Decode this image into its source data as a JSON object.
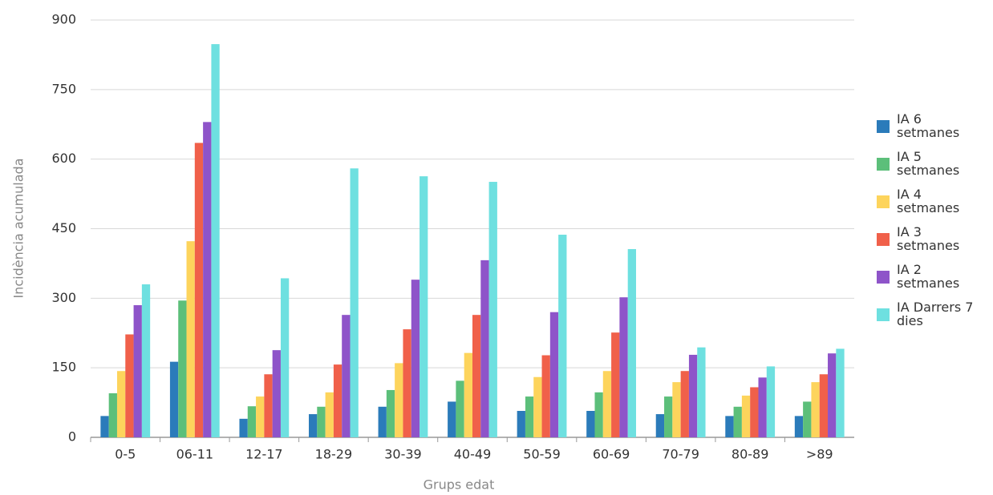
{
  "chart_data": {
    "type": "bar",
    "x_label": "Grups edat",
    "y_label": "Incidència acumulada",
    "categories": [
      "0-5",
      "06-11",
      "12-17",
      "18-29",
      "30-39",
      "40-49",
      "50-59",
      "60-69",
      "70-79",
      "80-89",
      ">89"
    ],
    "series": [
      {
        "name": "IA 6 setmanes",
        "color": "#2b7bba",
        "values": [
          46,
          163,
          40,
          50,
          66,
          77,
          57,
          57,
          50,
          46,
          46
        ]
      },
      {
        "name": "IA 5 setmanes",
        "color": "#5cbf7a",
        "values": [
          95,
          295,
          67,
          66,
          102,
          122,
          88,
          97,
          88,
          66,
          77
        ]
      },
      {
        "name": "IA 4 setmanes",
        "color": "#fdd45c",
        "values": [
          143,
          423,
          88,
          97,
          160,
          182,
          130,
          143,
          119,
          90,
          119
        ]
      },
      {
        "name": "IA 3 setmanes",
        "color": "#f0604a",
        "values": [
          222,
          635,
          136,
          157,
          233,
          264,
          177,
          226,
          143,
          108,
          136
        ]
      },
      {
        "name": "IA 2 setmanes",
        "color": "#8e54c9",
        "values": [
          285,
          680,
          188,
          264,
          340,
          382,
          270,
          302,
          178,
          129,
          181
        ]
      },
      {
        "name": "IA Darrers 7 dies",
        "color": "#6ee0e0",
        "values": [
          330,
          848,
          343,
          580,
          563,
          551,
          437,
          406,
          194,
          153,
          191
        ]
      }
    ],
    "ylim": [
      0,
      900
    ],
    "yticks": [
      0,
      150,
      300,
      450,
      600,
      750,
      900
    ],
    "grid": true,
    "legend": "right"
  }
}
